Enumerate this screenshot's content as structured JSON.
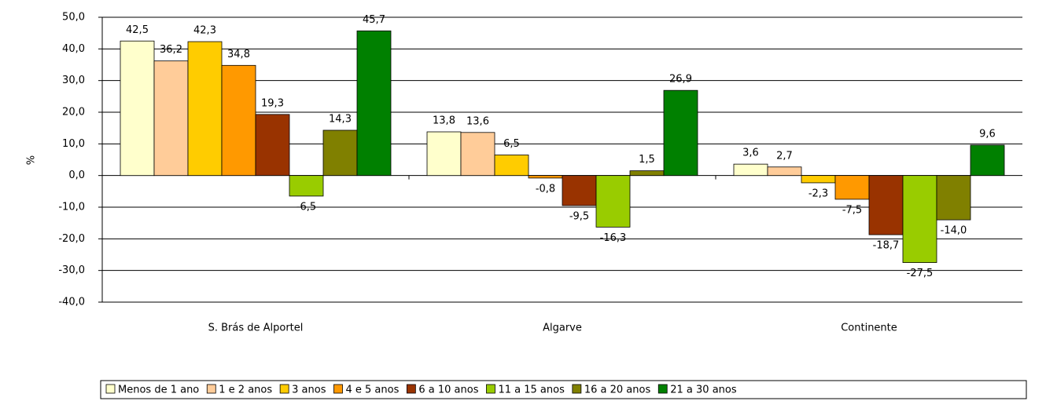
{
  "chart_data": {
    "type": "bar",
    "y_label": "%",
    "categories": [
      "S. Brás de Alportel",
      "Algarve",
      "Continente"
    ],
    "series": [
      {
        "name": "Menos de 1 ano",
        "color": "#FFFFCC",
        "values": [
          42.5,
          13.8,
          3.6
        ],
        "value_labels": [
          "42,5",
          "13,8",
          "3,6"
        ]
      },
      {
        "name": "1 e 2 anos",
        "color": "#FFCC99",
        "values": [
          36.2,
          13.6,
          2.7
        ],
        "value_labels": [
          "36,2",
          "13,6",
          "2,7"
        ]
      },
      {
        "name": "3 anos",
        "color": "#FFCC00",
        "values": [
          42.3,
          6.5,
          -2.3
        ],
        "value_labels": [
          "42,3",
          "6,5",
          "-2,3"
        ]
      },
      {
        "name": "4 e 5 anos",
        "color": "#FF9900",
        "values": [
          34.8,
          -0.8,
          -7.5
        ],
        "value_labels": [
          "34,8",
          "-0,8",
          "-7,5"
        ]
      },
      {
        "name": "6 a 10 anos",
        "color": "#993300",
        "values": [
          19.3,
          -9.5,
          -18.7
        ],
        "value_labels": [
          "19,3",
          "-9,5",
          "-18,7"
        ]
      },
      {
        "name": "11 a 15 anos",
        "color": "#99CC00",
        "values": [
          -6.5,
          -16.3,
          -27.5
        ],
        "value_labels": [
          "-6,5",
          "-16,3",
          "-27,5"
        ]
      },
      {
        "name": "16 a 20 anos",
        "color": "#808000",
        "values": [
          14.3,
          1.5,
          -14.0
        ],
        "value_labels": [
          "14,3",
          "1,5",
          "-14,0"
        ]
      },
      {
        "name": "21 a 30 anos",
        "color": "#008000",
        "values": [
          45.7,
          26.9,
          9.6
        ],
        "value_labels": [
          "45,7",
          "26,9",
          "9,6"
        ]
      }
    ],
    "ylim": [
      -40,
      50
    ],
    "yticks": [
      {
        "value": -40,
        "label": "-40,0"
      },
      {
        "value": -30,
        "label": "-30,0"
      },
      {
        "value": -20,
        "label": "-20,0"
      },
      {
        "value": -10,
        "label": "-10,0"
      },
      {
        "value": 0,
        "label": "0,0"
      },
      {
        "value": 10,
        "label": "10,0"
      },
      {
        "value": 20,
        "label": "20,0"
      },
      {
        "value": 30,
        "label": "30,0"
      },
      {
        "value": 40,
        "label": "40,0"
      },
      {
        "value": 50,
        "label": "50,0"
      }
    ],
    "grid": true,
    "legend": "bottom"
  }
}
